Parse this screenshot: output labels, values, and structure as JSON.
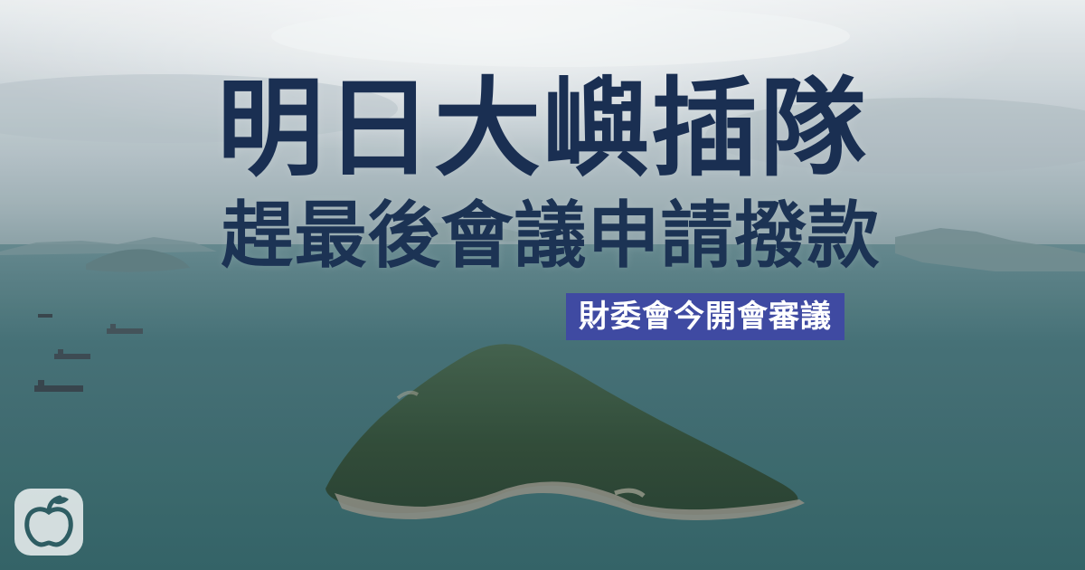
{
  "headline": {
    "line1": "明日大嶼插隊",
    "line2": "趕最後會議申請撥款"
  },
  "subheadline": "財委會今開會審議",
  "colors": {
    "headline_text": "#1a2f52",
    "badge_background": "#3f4aa2",
    "badge_text": "#ffffff",
    "sea": "#2e5d63",
    "sky": "#c9d3d8",
    "island": "#2b4a3a"
  },
  "logo": {
    "icon": "apple-icon"
  }
}
